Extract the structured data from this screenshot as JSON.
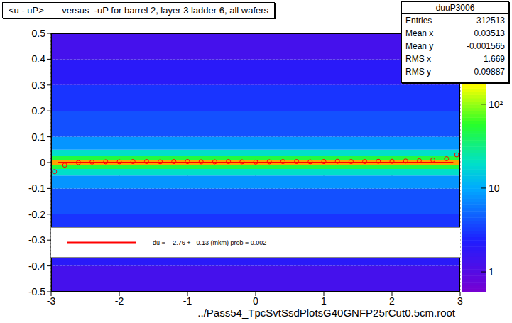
{
  "chart_data": {
    "type": "heatmap",
    "title": "<u - uP>       versus  -uP for barrel 2, layer 3 ladder 6, all wafers",
    "x_label": "../Pass54_TpcSvtSsdPlotsG40GNFP25rCut0.5cm.root",
    "xlim": [
      -3,
      3
    ],
    "ylim": [
      -0.5,
      0.5
    ],
    "xticks": [
      -3,
      -2,
      -1,
      0,
      1,
      2,
      3
    ],
    "yticks": [
      -0.5,
      -0.4,
      -0.3,
      -0.2,
      -0.1,
      0,
      0.1,
      0.2,
      0.3,
      0.4,
      0.5
    ],
    "grid": true,
    "cells": {
      "x_bins": [
        -3,
        3
      ],
      "y_bins": [
        -0.5,
        -0.4,
        -0.3,
        -0.2,
        -0.1,
        -0.05,
        -0.025,
        -0.01,
        0.01,
        0.025,
        0.05,
        0.1,
        0.2,
        0.3,
        0.4,
        0.5
      ],
      "counts": [
        1.3,
        2,
        3,
        4,
        8,
        20,
        50,
        300,
        50,
        20,
        8,
        4,
        3,
        2,
        1.3
      ]
    },
    "zlim": [
      0.58,
      700
    ],
    "zticks": [
      1,
      10,
      {
        "value": 100,
        "label": "10²"
      }
    ],
    "profile": {
      "color": "#ff0000",
      "marker": "circle",
      "x": [
        -2.95,
        -2.8,
        -2.6,
        -2.4,
        -2.2,
        -2.0,
        -1.8,
        -1.6,
        -1.4,
        -1.2,
        -1.0,
        -0.8,
        -0.6,
        -0.4,
        -0.2,
        0.0,
        0.2,
        0.4,
        0.6,
        0.8,
        1.0,
        1.2,
        1.4,
        1.6,
        1.8,
        2.0,
        2.2,
        2.4,
        2.6,
        2.8,
        2.95
      ],
      "values": [
        -0.035,
        -0.01,
        0.0,
        0.002,
        0.003,
        0.003,
        0.004,
        0.004,
        0.003,
        0.004,
        0.004,
        0.003,
        0.003,
        0.004,
        0.003,
        0.002,
        0.003,
        0.004,
        0.004,
        0.003,
        0.004,
        0.005,
        0.004,
        0.004,
        0.005,
        0.005,
        0.006,
        0.007,
        0.01,
        0.015,
        0.03
      ]
    },
    "fit_line": {
      "color": "#ff0000",
      "x": [
        -2.9,
        2.9
      ],
      "values": [
        -0.0003,
        -0.0003
      ]
    },
    "annotation": "du =   -2.76 +-  0.13 (mkm) prob = 0.002",
    "stats": {
      "title": "duuP3006",
      "rows": [
        [
          "Entries",
          "312513"
        ],
        [
          "Mean x",
          "0.03513"
        ],
        [
          "Mean y",
          "-0.001565"
        ],
        [
          "RMS x",
          "1.669"
        ],
        [
          "RMS y",
          "0.09887"
        ]
      ]
    }
  }
}
